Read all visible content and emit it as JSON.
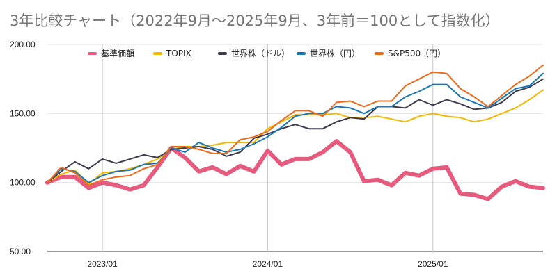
{
  "title": "3年比較チャート（2022年9月～2025年9月、3年前＝100として指数化）",
  "chart_data": {
    "type": "line",
    "title": "3年比較チャート（2022年9月～2025年9月、3年前＝100として指数化）",
    "xlabel": "",
    "ylabel": "",
    "ylim": [
      50,
      200
    ],
    "yticks": [
      "50.00",
      "100.00",
      "150.00",
      "200.00"
    ],
    "xticks": [
      "2023/01",
      "2024/01",
      "2025/01"
    ],
    "grid": "vertical",
    "legend_position": "top",
    "x": [
      "2022/09",
      "2022/10",
      "2022/11",
      "2022/12",
      "2023/01",
      "2023/02",
      "2023/03",
      "2023/04",
      "2023/05",
      "2023/06",
      "2023/07",
      "2023/08",
      "2023/09",
      "2023/10",
      "2023/11",
      "2023/12",
      "2024/01",
      "2024/02",
      "2024/03",
      "2024/04",
      "2024/05",
      "2024/06",
      "2024/07",
      "2024/08",
      "2024/09",
      "2024/10",
      "2024/11",
      "2024/12",
      "2025/01",
      "2025/02",
      "2025/03",
      "2025/04",
      "2025/05",
      "2025/06",
      "2025/07",
      "2025/08",
      "2025/09"
    ],
    "series": [
      {
        "name": "基準価額",
        "color": "#e65a7d",
        "width": 6,
        "values": [
          100,
          104,
          104,
          96,
          100,
          98,
          95,
          98,
          111,
          125,
          118,
          108,
          111,
          106,
          112,
          108,
          123,
          113,
          117,
          117,
          122,
          130,
          122,
          101,
          102,
          98,
          107,
          105,
          110,
          111,
          92,
          91,
          88,
          97,
          101,
          97,
          96
        ]
      },
      {
        "name": "TOPIX",
        "color": "#f5b700",
        "width": 2,
        "values": [
          100,
          106,
          109,
          99,
          107,
          108,
          110,
          113,
          117,
          124,
          126,
          126,
          127,
          129,
          129,
          129,
          139,
          144,
          149,
          149,
          149,
          150,
          147,
          147,
          148,
          146,
          144,
          148,
          150,
          148,
          147,
          144,
          146,
          150,
          154,
          160,
          167
        ]
      },
      {
        "name": "世界株（ドル）",
        "color": "#3d3a4e",
        "width": 2,
        "values": [
          100,
          108,
          115,
          110,
          117,
          114,
          117,
          120,
          118,
          124,
          125,
          126,
          124,
          119,
          122,
          132,
          135,
          139,
          142,
          139,
          139,
          144,
          147,
          146,
          155,
          155,
          154,
          160,
          156,
          160,
          157,
          153,
          154,
          158,
          166,
          169,
          175
        ]
      },
      {
        "name": "世界株（円）",
        "color": "#1a78b6",
        "width": 2,
        "values": [
          100,
          110,
          108,
          100,
          105,
          108,
          109,
          113,
          114,
          125,
          122,
          129,
          125,
          122,
          124,
          128,
          133,
          140,
          148,
          150,
          150,
          155,
          154,
          150,
          155,
          155,
          162,
          166,
          171,
          171,
          162,
          158,
          154,
          161,
          168,
          170,
          179
        ]
      },
      {
        "name": "S&P500（円）",
        "color": "#ee6b1b",
        "width": 2,
        "values": [
          100,
          111,
          107,
          98,
          102,
          104,
          105,
          110,
          113,
          126,
          126,
          124,
          121,
          121,
          131,
          133,
          137,
          145,
          152,
          152,
          148,
          158,
          159,
          155,
          159,
          159,
          170,
          175,
          180,
          179,
          168,
          162,
          155,
          163,
          171,
          177,
          185
        ]
      }
    ]
  }
}
